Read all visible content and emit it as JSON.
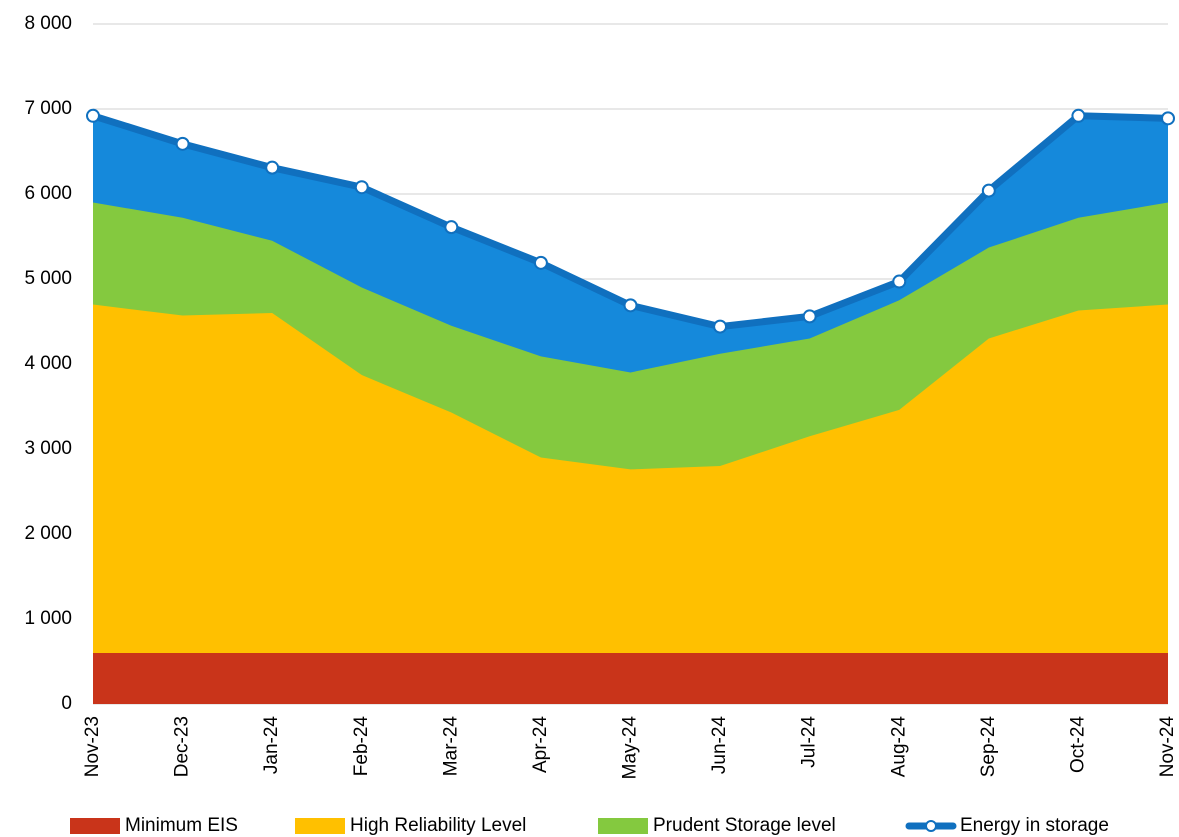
{
  "chart_data": {
    "type": "area",
    "categories": [
      "Nov-23",
      "Dec-23",
      "Jan-24",
      "Feb-24",
      "Mar-24",
      "Apr-24",
      "May-24",
      "Jun-24",
      "Jul-24",
      "Aug-24",
      "Sep-24",
      "Oct-24",
      "Nov-24"
    ],
    "series": [
      {
        "name": "Minimum EIS",
        "color": "#c9341a",
        "values": [
          600,
          600,
          600,
          600,
          600,
          600,
          600,
          600,
          600,
          600,
          600,
          600,
          600
        ]
      },
      {
        "name": "High Reliability Level",
        "color": "#ffc000",
        "values": [
          4700,
          4570,
          4600,
          3870,
          3430,
          2900,
          2760,
          2800,
          3150,
          3460,
          4300,
          4630,
          4700
        ]
      },
      {
        "name": "Prudent Storage level",
        "color": "#84c93f",
        "values": [
          5900,
          5720,
          5450,
          4900,
          4450,
          4090,
          3900,
          4120,
          4300,
          4750,
          5370,
          5720,
          5900
        ]
      },
      {
        "name": "Energy in storage",
        "color": "#1589db",
        "line_color": "#1070bf",
        "markers": true,
        "values": [
          6920,
          6590,
          6310,
          6080,
          5610,
          5190,
          4690,
          4440,
          4560,
          4970,
          6040,
          6920,
          6890
        ]
      }
    ],
    "ylim": [
      0,
      8000
    ],
    "yticks": [
      0,
      {
        "value": 1000,
        "label": "1 000"
      },
      {
        "value": 2000,
        "label": "2 000"
      },
      {
        "value": 3000,
        "label": "3 000"
      },
      {
        "value": 4000,
        "label": "4 000"
      },
      {
        "value": 5000,
        "label": "5 000"
      },
      {
        "value": 6000,
        "label": "6 000"
      },
      {
        "value": 7000,
        "label": "7 000"
      },
      {
        "value": 8000,
        "label": "8 000"
      }
    ],
    "grid": true,
    "legend": "bottom"
  }
}
